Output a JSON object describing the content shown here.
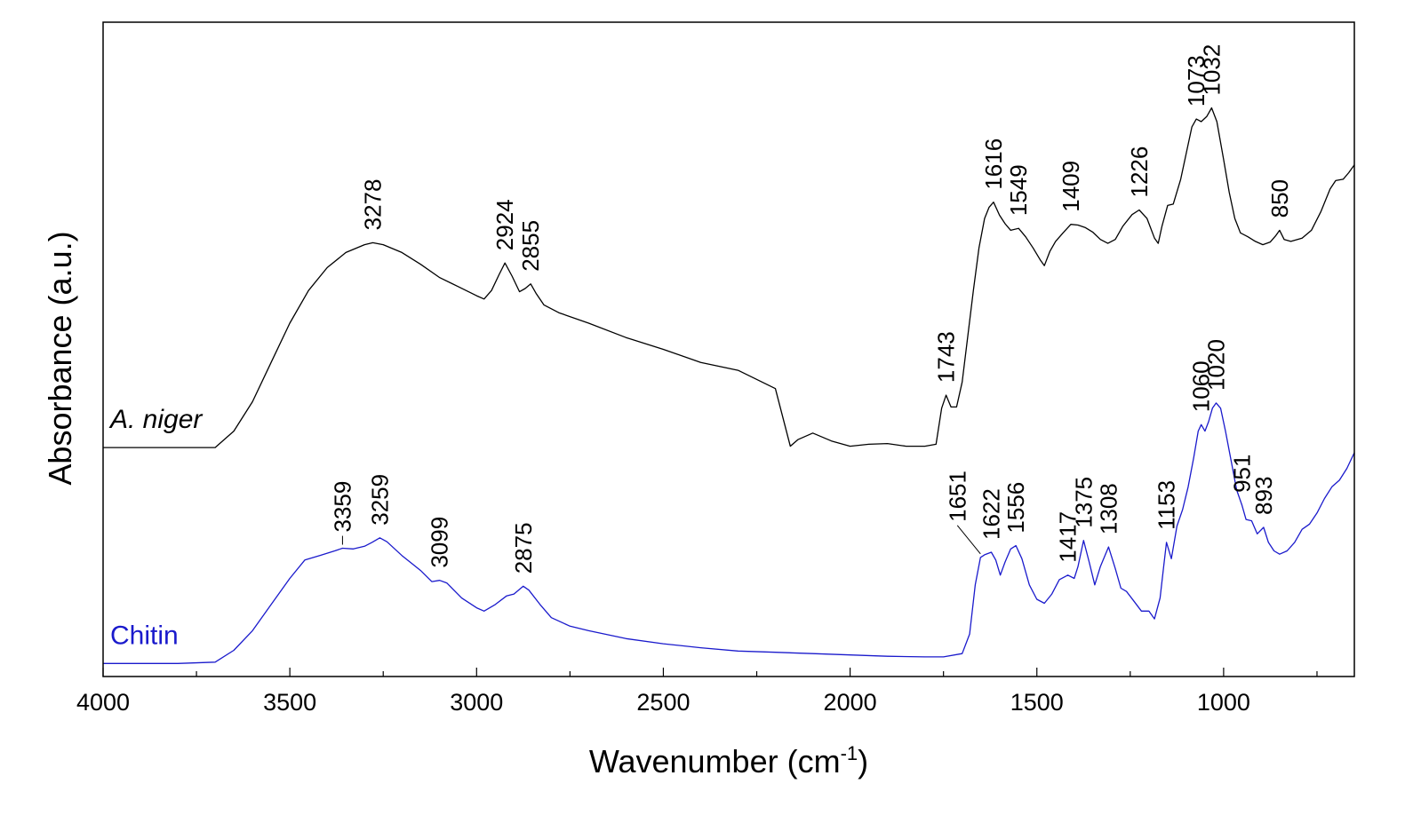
{
  "chart_data": {
    "type": "line",
    "xlabel": "Wavenumber (cm",
    "xlabel_sup": "-1",
    "xlabel_close": ")",
    "ylabel": "Absorbance (a.u.)",
    "xlim": [
      4000,
      650
    ],
    "x_reversed": true,
    "ylim": [
      0,
      1
    ],
    "x_ticks": [
      4000,
      3500,
      3000,
      2500,
      2000,
      1500,
      1000
    ],
    "grid": false,
    "series": [
      {
        "name": "A. niger",
        "italic": true,
        "color": "#000000",
        "points": [
          [
            4000,
            0.35
          ],
          [
            3800,
            0.35
          ],
          [
            3700,
            0.35
          ],
          [
            3650,
            0.375
          ],
          [
            3600,
            0.42
          ],
          [
            3550,
            0.48
          ],
          [
            3500,
            0.54
          ],
          [
            3450,
            0.59
          ],
          [
            3400,
            0.625
          ],
          [
            3350,
            0.648
          ],
          [
            3300,
            0.66
          ],
          [
            3278,
            0.663
          ],
          [
            3250,
            0.66
          ],
          [
            3200,
            0.648
          ],
          [
            3150,
            0.63
          ],
          [
            3100,
            0.61
          ],
          [
            3050,
            0.596
          ],
          [
            3000,
            0.582
          ],
          [
            2980,
            0.577
          ],
          [
            2960,
            0.59
          ],
          [
            2940,
            0.614
          ],
          [
            2924,
            0.632
          ],
          [
            2905,
            0.612
          ],
          [
            2885,
            0.588
          ],
          [
            2870,
            0.593
          ],
          [
            2855,
            0.6
          ],
          [
            2840,
            0.585
          ],
          [
            2820,
            0.568
          ],
          [
            2780,
            0.556
          ],
          [
            2700,
            0.54
          ],
          [
            2600,
            0.518
          ],
          [
            2500,
            0.5
          ],
          [
            2400,
            0.48
          ],
          [
            2300,
            0.468
          ],
          [
            2200,
            0.44
          ],
          [
            2160,
            0.352
          ],
          [
            2140,
            0.362
          ],
          [
            2100,
            0.372
          ],
          [
            2050,
            0.36
          ],
          [
            2000,
            0.352
          ],
          [
            1950,
            0.355
          ],
          [
            1900,
            0.356
          ],
          [
            1850,
            0.352
          ],
          [
            1800,
            0.352
          ],
          [
            1770,
            0.355
          ],
          [
            1755,
            0.41
          ],
          [
            1743,
            0.43
          ],
          [
            1730,
            0.412
          ],
          [
            1715,
            0.412
          ],
          [
            1700,
            0.45
          ],
          [
            1685,
            0.52
          ],
          [
            1670,
            0.59
          ],
          [
            1655,
            0.655
          ],
          [
            1640,
            0.7
          ],
          [
            1628,
            0.717
          ],
          [
            1616,
            0.725
          ],
          [
            1600,
            0.705
          ],
          [
            1585,
            0.692
          ],
          [
            1570,
            0.682
          ],
          [
            1549,
            0.685
          ],
          [
            1530,
            0.672
          ],
          [
            1510,
            0.655
          ],
          [
            1490,
            0.636
          ],
          [
            1480,
            0.628
          ],
          [
            1465,
            0.65
          ],
          [
            1450,
            0.665
          ],
          [
            1430,
            0.678
          ],
          [
            1409,
            0.691
          ],
          [
            1390,
            0.69
          ],
          [
            1370,
            0.686
          ],
          [
            1350,
            0.679
          ],
          [
            1330,
            0.668
          ],
          [
            1310,
            0.662
          ],
          [
            1290,
            0.668
          ],
          [
            1270,
            0.688
          ],
          [
            1245,
            0.706
          ],
          [
            1226,
            0.713
          ],
          [
            1205,
            0.7
          ],
          [
            1185,
            0.67
          ],
          [
            1175,
            0.662
          ],
          [
            1165,
            0.688
          ],
          [
            1150,
            0.72
          ],
          [
            1135,
            0.722
          ],
          [
            1115,
            0.76
          ],
          [
            1100,
            0.8
          ],
          [
            1085,
            0.84
          ],
          [
            1073,
            0.852
          ],
          [
            1060,
            0.848
          ],
          [
            1045,
            0.856
          ],
          [
            1032,
            0.869
          ],
          [
            1018,
            0.848
          ],
          [
            1000,
            0.79
          ],
          [
            985,
            0.74
          ],
          [
            970,
            0.7
          ],
          [
            955,
            0.678
          ],
          [
            935,
            0.672
          ],
          [
            915,
            0.665
          ],
          [
            895,
            0.66
          ],
          [
            875,
            0.664
          ],
          [
            860,
            0.674
          ],
          [
            850,
            0.682
          ],
          [
            838,
            0.668
          ],
          [
            820,
            0.665
          ],
          [
            790,
            0.67
          ],
          [
            765,
            0.682
          ],
          [
            740,
            0.71
          ],
          [
            715,
            0.745
          ],
          [
            700,
            0.758
          ],
          [
            680,
            0.76
          ],
          [
            665,
            0.77
          ],
          [
            650,
            0.782
          ]
        ]
      },
      {
        "name": "Chitin",
        "italic": false,
        "color": "#1a1acc",
        "points": [
          [
            4000,
            0.02
          ],
          [
            3800,
            0.02
          ],
          [
            3700,
            0.022
          ],
          [
            3650,
            0.04
          ],
          [
            3600,
            0.07
          ],
          [
            3550,
            0.11
          ],
          [
            3500,
            0.15
          ],
          [
            3460,
            0.178
          ],
          [
            3420,
            0.185
          ],
          [
            3380,
            0.192
          ],
          [
            3359,
            0.196
          ],
          [
            3330,
            0.195
          ],
          [
            3300,
            0.199
          ],
          [
            3280,
            0.205
          ],
          [
            3259,
            0.212
          ],
          [
            3240,
            0.206
          ],
          [
            3200,
            0.185
          ],
          [
            3150,
            0.162
          ],
          [
            3120,
            0.145
          ],
          [
            3099,
            0.147
          ],
          [
            3080,
            0.143
          ],
          [
            3040,
            0.12
          ],
          [
            3000,
            0.105
          ],
          [
            2980,
            0.1
          ],
          [
            2950,
            0.11
          ],
          [
            2920,
            0.123
          ],
          [
            2900,
            0.126
          ],
          [
            2875,
            0.138
          ],
          [
            2860,
            0.132
          ],
          [
            2830,
            0.11
          ],
          [
            2800,
            0.09
          ],
          [
            2750,
            0.077
          ],
          [
            2700,
            0.07
          ],
          [
            2600,
            0.058
          ],
          [
            2500,
            0.05
          ],
          [
            2400,
            0.044
          ],
          [
            2300,
            0.039
          ],
          [
            2200,
            0.037
          ],
          [
            2100,
            0.035
          ],
          [
            2000,
            0.033
          ],
          [
            1900,
            0.031
          ],
          [
            1800,
            0.03
          ],
          [
            1750,
            0.03
          ],
          [
            1700,
            0.035
          ],
          [
            1680,
            0.065
          ],
          [
            1665,
            0.14
          ],
          [
            1651,
            0.182
          ],
          [
            1640,
            0.186
          ],
          [
            1622,
            0.19
          ],
          [
            1610,
            0.178
          ],
          [
            1598,
            0.155
          ],
          [
            1585,
            0.175
          ],
          [
            1570,
            0.195
          ],
          [
            1556,
            0.2
          ],
          [
            1540,
            0.18
          ],
          [
            1520,
            0.14
          ],
          [
            1500,
            0.118
          ],
          [
            1480,
            0.112
          ],
          [
            1460,
            0.126
          ],
          [
            1440,
            0.148
          ],
          [
            1417,
            0.155
          ],
          [
            1400,
            0.15
          ],
          [
            1390,
            0.168
          ],
          [
            1375,
            0.208
          ],
          [
            1360,
            0.175
          ],
          [
            1345,
            0.14
          ],
          [
            1330,
            0.168
          ],
          [
            1308,
            0.198
          ],
          [
            1290,
            0.165
          ],
          [
            1275,
            0.135
          ],
          [
            1260,
            0.13
          ],
          [
            1240,
            0.115
          ],
          [
            1220,
            0.1
          ],
          [
            1200,
            0.1
          ],
          [
            1185,
            0.088
          ],
          [
            1170,
            0.12
          ],
          [
            1160,
            0.17
          ],
          [
            1153,
            0.205
          ],
          [
            1140,
            0.18
          ],
          [
            1125,
            0.23
          ],
          [
            1110,
            0.255
          ],
          [
            1095,
            0.29
          ],
          [
            1080,
            0.335
          ],
          [
            1068,
            0.375
          ],
          [
            1060,
            0.385
          ],
          [
            1050,
            0.375
          ],
          [
            1040,
            0.39
          ],
          [
            1030,
            0.41
          ],
          [
            1020,
            0.418
          ],
          [
            1008,
            0.41
          ],
          [
            995,
            0.375
          ],
          [
            980,
            0.33
          ],
          [
            965,
            0.285
          ],
          [
            951,
            0.262
          ],
          [
            940,
            0.24
          ],
          [
            925,
            0.238
          ],
          [
            910,
            0.218
          ],
          [
            893,
            0.228
          ],
          [
            880,
            0.205
          ],
          [
            865,
            0.192
          ],
          [
            850,
            0.187
          ],
          [
            830,
            0.192
          ],
          [
            810,
            0.205
          ],
          [
            790,
            0.225
          ],
          [
            770,
            0.233
          ],
          [
            750,
            0.25
          ],
          [
            730,
            0.272
          ],
          [
            710,
            0.29
          ],
          [
            690,
            0.3
          ],
          [
            670,
            0.318
          ],
          [
            650,
            0.342
          ]
        ]
      }
    ],
    "annotations": [
      {
        "series": "A. niger",
        "text": "3278",
        "x": 3278
      },
      {
        "series": "A. niger",
        "text": "2924",
        "x": 2924
      },
      {
        "series": "A. niger",
        "text": "2855",
        "x": 2855
      },
      {
        "series": "A. niger",
        "text": "1743",
        "x": 1743
      },
      {
        "series": "A. niger",
        "text": "1616",
        "x": 1616
      },
      {
        "series": "A. niger",
        "text": "1549",
        "x": 1549
      },
      {
        "series": "A. niger",
        "text": "1409",
        "x": 1409
      },
      {
        "series": "A. niger",
        "text": "1226",
        "x": 1226
      },
      {
        "series": "A. niger",
        "text": "1073",
        "x": 1073
      },
      {
        "series": "A. niger",
        "text": "1032",
        "x": 1032
      },
      {
        "series": "A. niger",
        "text": "850",
        "x": 850
      },
      {
        "series": "Chitin",
        "text": "3359",
        "x": 3359
      },
      {
        "series": "Chitin",
        "text": "3259",
        "x": 3259
      },
      {
        "series": "Chitin",
        "text": "3099",
        "x": 3099
      },
      {
        "series": "Chitin",
        "text": "2875",
        "x": 2875
      },
      {
        "series": "Chitin",
        "text": "1651",
        "x": 1651
      },
      {
        "series": "Chitin",
        "text": "1622",
        "x": 1622
      },
      {
        "series": "Chitin",
        "text": "1556",
        "x": 1556
      },
      {
        "series": "Chitin",
        "text": "1417",
        "x": 1417
      },
      {
        "series": "Chitin",
        "text": "1375",
        "x": 1375
      },
      {
        "series": "Chitin",
        "text": "1308",
        "x": 1308
      },
      {
        "series": "Chitin",
        "text": "1153",
        "x": 1153
      },
      {
        "series": "Chitin",
        "text": "1060",
        "x": 1060
      },
      {
        "series": "Chitin",
        "text": "1020",
        "x": 1020
      },
      {
        "series": "Chitin",
        "text": "951",
        "x": 951
      },
      {
        "series": "Chitin",
        "text": "893",
        "x": 893
      }
    ]
  }
}
